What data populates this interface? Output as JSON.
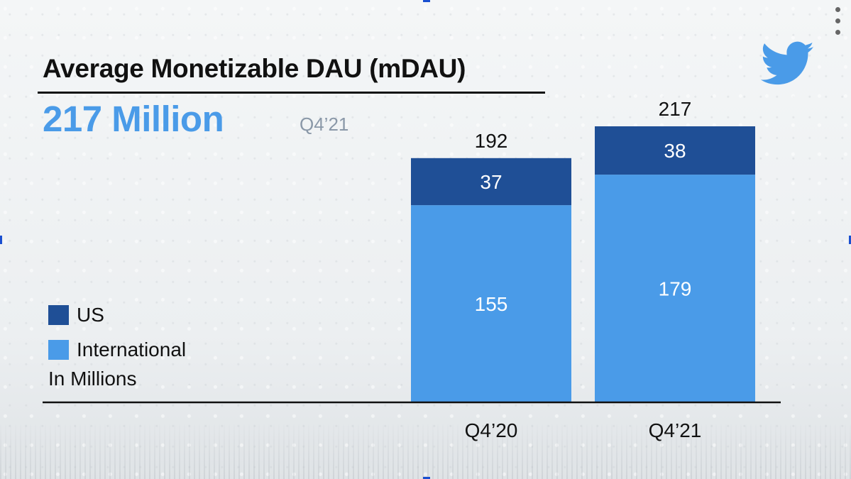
{
  "title": "Average Monetizable DAU (mDAU)",
  "headline": "217 Million",
  "period": "Q4’21",
  "logo_icon": "twitter-bird-icon",
  "menu_icon": "more-vertical-icon",
  "colors": {
    "us": "#1f4f96",
    "international": "#4a9be8",
    "headline": "#4a9be8",
    "logo": "#4a9be8"
  },
  "chart_data": {
    "type": "bar",
    "stacked": true,
    "categories": [
      "Q4’20",
      "Q4’21"
    ],
    "series": [
      {
        "name": "International",
        "values": [
          155,
          179
        ],
        "labels": [
          "155",
          "179"
        ]
      },
      {
        "name": "US",
        "values": [
          37,
          38
        ],
        "labels": [
          "37",
          "38"
        ]
      }
    ],
    "totals": [
      192,
      217
    ],
    "total_labels": [
      "192",
      "217"
    ],
    "legend": [
      "US",
      "International"
    ],
    "legend_position": "left",
    "unit_note": "In Millions",
    "ylim": [
      0,
      217
    ],
    "grid": false
  }
}
